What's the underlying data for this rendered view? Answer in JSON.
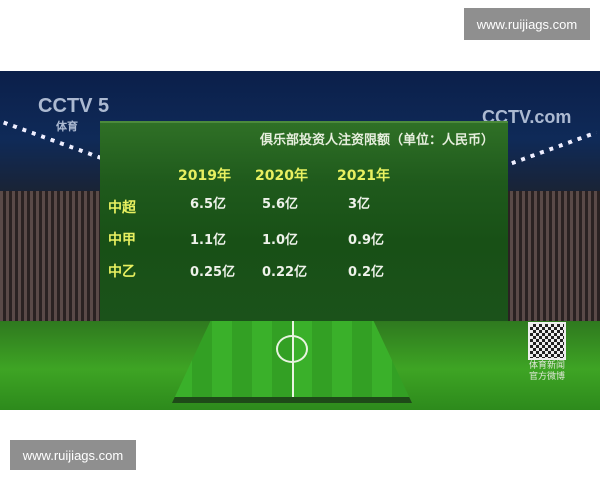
{
  "watermark_top": "www.ruijiags.com",
  "watermark_bottom": "www.ruijiags.com",
  "logos": {
    "channel": "CCTV 5",
    "channel_sub": "体育",
    "site": "CCTV.com"
  },
  "qr_caption": [
    "体育新闻",
    "官方微博"
  ],
  "table": {
    "title": "俱乐部投资人注资限额（单位：人民币）",
    "columns": [
      "2019年",
      "2020年",
      "2021年"
    ],
    "rows": [
      {
        "label": "中超",
        "values": [
          "6.5亿",
          "5.6亿",
          "3亿"
        ]
      },
      {
        "label": "中甲",
        "values": [
          "1.1亿",
          "1.0亿",
          "0.9亿"
        ]
      },
      {
        "label": "中乙",
        "values": [
          "0.25亿",
          "0.22亿",
          "0.2亿"
        ]
      }
    ]
  },
  "chart_data": {
    "type": "table",
    "title": "俱乐部投资人注资限额（单位：人民币）",
    "columns": [
      "2019年",
      "2020年",
      "2021年"
    ],
    "rows": [
      {
        "label": "中超",
        "values": [
          "6.5亿",
          "5.6亿",
          "3亿"
        ]
      },
      {
        "label": "中甲",
        "values": [
          "1.1亿",
          "1.0亿",
          "0.9亿"
        ]
      },
      {
        "label": "中乙",
        "values": [
          "0.25亿",
          "0.22亿",
          "0.2亿"
        ]
      }
    ]
  }
}
